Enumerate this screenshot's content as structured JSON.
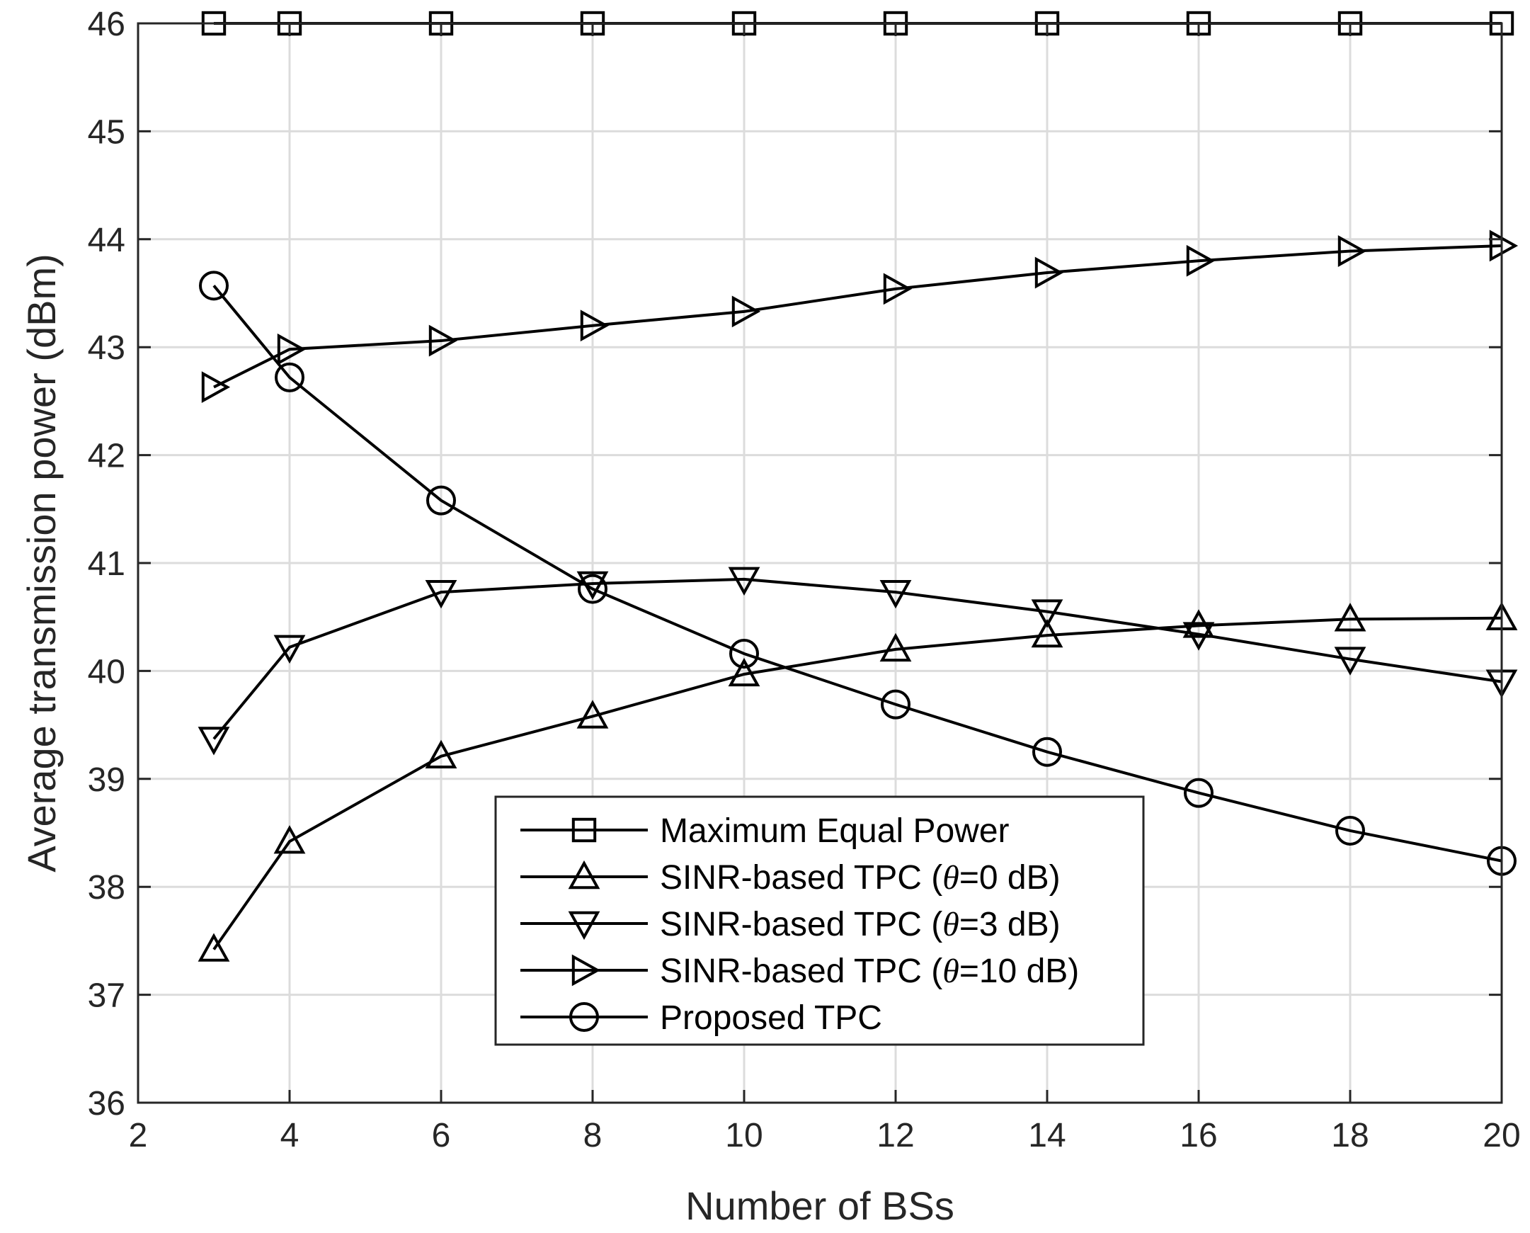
{
  "chart_data": {
    "type": "line",
    "title": "",
    "xlabel": "Number of BSs",
    "ylabel": "Average transmission power (dBm)",
    "xlim": [
      2,
      20
    ],
    "ylim": [
      36,
      46
    ],
    "xticks": [
      2,
      4,
      6,
      8,
      10,
      12,
      14,
      16,
      18,
      20
    ],
    "yticks": [
      36,
      37,
      38,
      39,
      40,
      41,
      42,
      43,
      44,
      45,
      46
    ],
    "grid": true,
    "legend_position": "bottom-center",
    "x": [
      3,
      4,
      6,
      8,
      10,
      12,
      14,
      16,
      18,
      20
    ],
    "series": [
      {
        "name": "Maximum Equal Power",
        "legend_prefix": "Maximum Equal Power",
        "legend_theta": "",
        "legend_suffix": "",
        "marker": "square",
        "values": [
          46,
          46,
          46,
          46,
          46,
          46,
          46,
          46,
          46,
          46
        ]
      },
      {
        "name": "SINR-based TPC (θ=0 dB)",
        "legend_prefix": "SINR-based TPC (",
        "legend_theta": "θ",
        "legend_suffix": "=0 dB)",
        "marker": "triangle-up",
        "values": [
          37.42,
          38.42,
          39.21,
          39.58,
          39.97,
          40.2,
          40.33,
          40.42,
          40.48,
          40.49
        ]
      },
      {
        "name": "SINR-based TPC (θ=3 dB)",
        "legend_prefix": "SINR-based TPC (",
        "legend_theta": "θ",
        "legend_suffix": "=3 dB)",
        "marker": "triangle-down",
        "values": [
          39.37,
          40.22,
          40.73,
          40.81,
          40.85,
          40.73,
          40.55,
          40.34,
          40.11,
          39.9
        ]
      },
      {
        "name": "SINR-based TPC (θ=10 dB)",
        "legend_prefix": "SINR-based TPC (",
        "legend_theta": "θ",
        "legend_suffix": "=10 dB)",
        "marker": "triangle-right",
        "values": [
          42.63,
          42.98,
          43.06,
          43.2,
          43.33,
          43.54,
          43.69,
          43.8,
          43.89,
          43.94
        ]
      },
      {
        "name": "Proposed TPC",
        "legend_prefix": "Proposed TPC",
        "legend_theta": "",
        "legend_suffix": "",
        "marker": "circle",
        "values": [
          43.57,
          42.72,
          41.58,
          40.76,
          40.16,
          39.69,
          39.25,
          38.87,
          38.52,
          38.24
        ]
      }
    ]
  }
}
